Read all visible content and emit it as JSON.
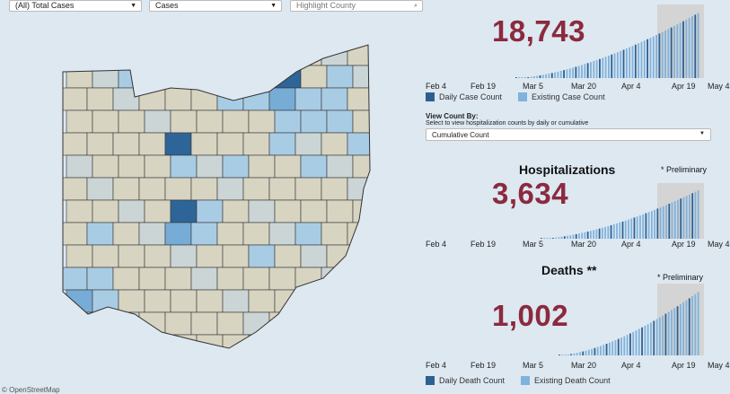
{
  "filters": {
    "case_type": "(All) Total Cases",
    "measure": "Cases",
    "search_placeholder": "Highlight County"
  },
  "map": {
    "credit": "© OpenStreetMap",
    "palette": {
      "none": "#d8d4c2",
      "low": "#cbd5d6",
      "light": "#a9cce5",
      "mid": "#77acd6",
      "high": "#2e6598"
    }
  },
  "axis_ticks": [
    "Feb 4",
    "Feb 19",
    "Mar 5",
    "Mar 20",
    "Apr 4",
    "Apr 19",
    "May 4"
  ],
  "cases": {
    "total": "18,743",
    "legend": [
      "Daily Case Count",
      "Existing Case Count"
    ]
  },
  "view_by": {
    "label": "View Count By:",
    "help": "Select to view hospitalization counts by daily or cumulative",
    "selected": "Cumulative Count"
  },
  "hospitalizations": {
    "title": "Hospitalizations",
    "note": "* Preliminary",
    "total": "3,634"
  },
  "deaths": {
    "title": "Deaths **",
    "note": "* Preliminary",
    "total": "1,002",
    "legend": [
      "Daily Death Count",
      "Existing Death Count"
    ]
  },
  "colors": {
    "accent": "#8b2a3e",
    "daily": "#2e5f91",
    "existing": "#7fb2dc",
    "shade": "#d4d4d4"
  }
}
